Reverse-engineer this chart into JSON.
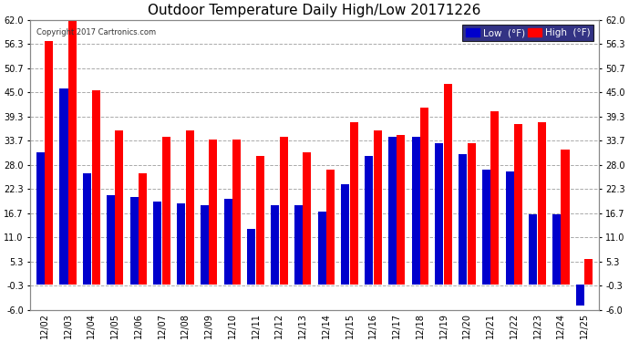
{
  "title": "Outdoor Temperature Daily High/Low 20171226",
  "copyright": "Copyright 2017 Cartronics.com",
  "dates": [
    "12/02",
    "12/03",
    "12/04",
    "12/05",
    "12/06",
    "12/07",
    "12/08",
    "12/09",
    "12/10",
    "12/11",
    "12/12",
    "12/13",
    "12/14",
    "12/15",
    "12/16",
    "12/17",
    "12/18",
    "12/19",
    "12/20",
    "12/21",
    "12/22",
    "12/23",
    "12/24",
    "12/25"
  ],
  "high": [
    57.0,
    62.0,
    45.5,
    36.0,
    26.0,
    34.5,
    36.0,
    34.0,
    34.0,
    30.0,
    34.5,
    31.0,
    27.0,
    38.0,
    36.0,
    35.0,
    41.5,
    47.0,
    33.0,
    40.5,
    37.5,
    38.0,
    31.5,
    6.0
  ],
  "low": [
    31.0,
    46.0,
    26.0,
    21.0,
    20.5,
    19.5,
    19.0,
    18.5,
    20.0,
    13.0,
    18.5,
    18.5,
    17.0,
    23.5,
    30.0,
    34.5,
    34.5,
    33.0,
    30.5,
    27.0,
    26.5,
    16.5,
    16.5,
    -5.0
  ],
  "high_color": "#ff0000",
  "low_color": "#0000cc",
  "ylim_min": -6.0,
  "ylim_max": 62.0,
  "yticks": [
    -6.0,
    -0.3,
    5.3,
    11.0,
    16.7,
    22.3,
    28.0,
    33.7,
    39.3,
    45.0,
    50.7,
    56.3,
    62.0
  ],
  "ytick_labels": [
    "-6.0",
    "-0.3",
    "5.3",
    "11.0",
    "16.7",
    "22.3",
    "28.0",
    "33.7",
    "39.3",
    "45.0",
    "50.7",
    "56.3",
    "62.0"
  ],
  "background_color": "#ffffff",
  "plot_bg_color": "#ffffff",
  "grid_color": "#aaaaaa",
  "title_fontsize": 11,
  "tick_fontsize": 7,
  "xlabel_fontsize": 7,
  "legend_low_label": "Low  (°F)",
  "legend_high_label": "High  (°F)",
  "bar_width": 0.35,
  "bar_gap": 0.01
}
